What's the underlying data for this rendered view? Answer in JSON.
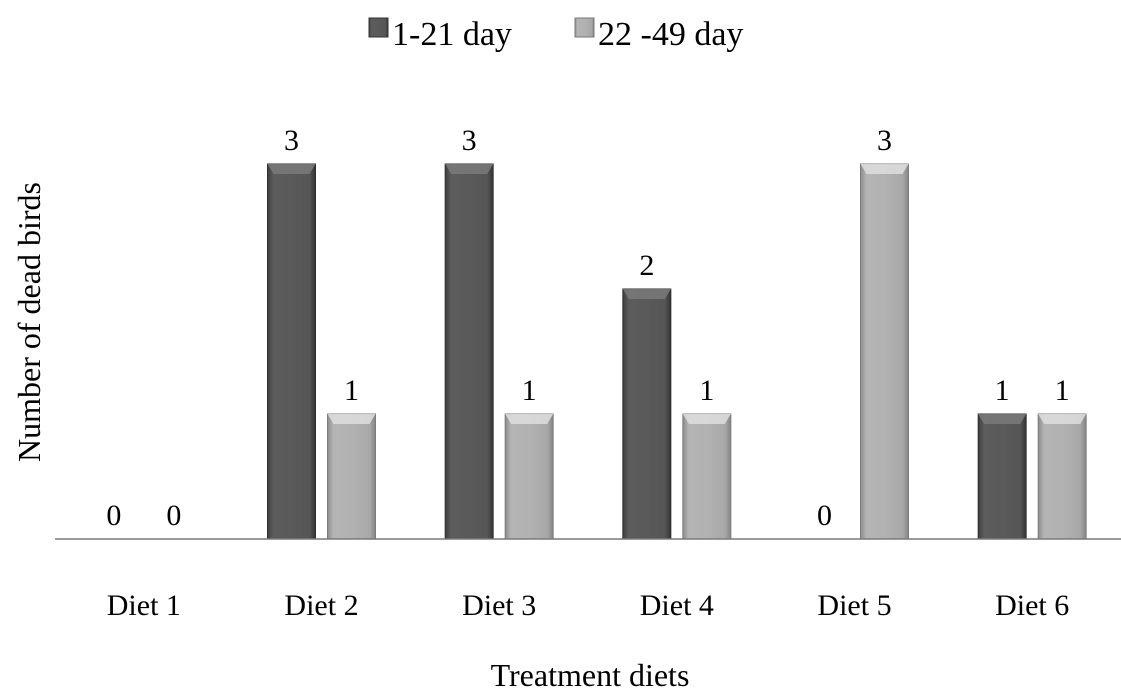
{
  "chart_data": {
    "type": "bar",
    "title": "",
    "xlabel": "Treatment diets",
    "ylabel": "Number of dead birds",
    "categories": [
      "Diet 1",
      "Diet 2",
      "Diet 3",
      "Diet 4",
      "Diet 5",
      "Diet 6"
    ],
    "series": [
      {
        "name": "1-21 day",
        "values": [
          0,
          3,
          3,
          2,
          0,
          1
        ],
        "color": "#5a5a5a"
      },
      {
        "name": "22 -49 day",
        "values": [
          0,
          1,
          1,
          1,
          3,
          1
        ],
        "color": "#b0b0b0"
      }
    ],
    "ylim": [
      0,
      3
    ],
    "data_labels": true,
    "grid": false,
    "legend_position": "top"
  }
}
